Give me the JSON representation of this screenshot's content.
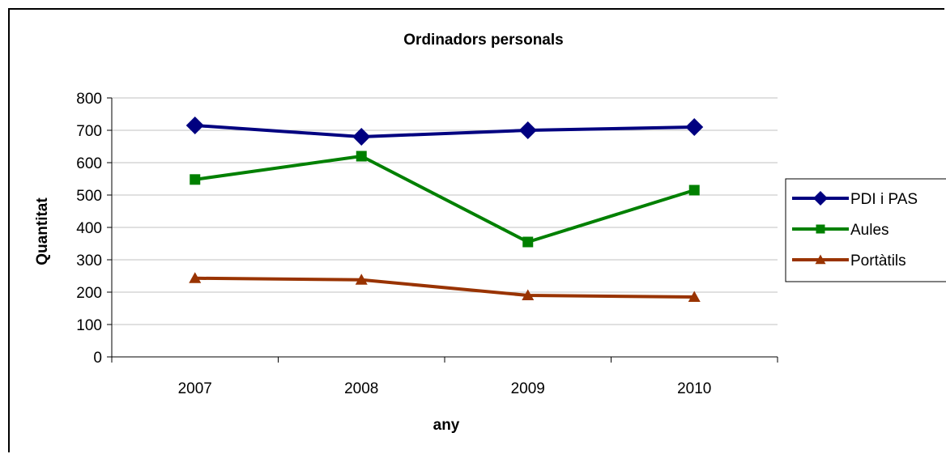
{
  "chart_data": {
    "type": "line",
    "title": "Ordinadors personals",
    "xlabel": "any",
    "ylabel": "Quantitat",
    "categories": [
      "2007",
      "2008",
      "2009",
      "2010"
    ],
    "ylim": [
      0,
      800
    ],
    "yticks": [
      0,
      100,
      200,
      300,
      400,
      500,
      600,
      700,
      800
    ],
    "grid": true,
    "legend_position": "right",
    "series": [
      {
        "name": "PDI i PAS",
        "values": [
          715,
          680,
          700,
          710
        ],
        "color": "#000080",
        "marker": "diamond"
      },
      {
        "name": "Aules",
        "values": [
          548,
          620,
          355,
          515
        ],
        "color": "#008000",
        "marker": "square"
      },
      {
        "name": "Portàtils",
        "values": [
          243,
          238,
          190,
          185
        ],
        "color": "#993300",
        "marker": "triangle"
      }
    ]
  }
}
